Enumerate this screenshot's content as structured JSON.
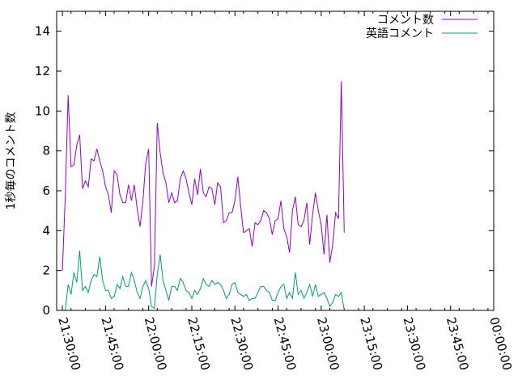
{
  "chart_data": {
    "type": "line",
    "title": "",
    "xlabel": "",
    "ylabel": "1秒毎のコメント数",
    "ylim": [
      0,
      15
    ],
    "yticks": [
      0,
      2,
      4,
      6,
      8,
      10,
      12,
      14
    ],
    "xlim": [
      "21:28:00",
      "00:00:00"
    ],
    "xticks": [
      "21:30:00",
      "21:45:00",
      "22:00:00",
      "22:15:00",
      "22:30:00",
      "22:45:00",
      "23:00:00",
      "23:15:00",
      "23:30:00",
      "23:45:00",
      "00:00:00"
    ],
    "grid": false,
    "legend_position": "top-right",
    "series": [
      {
        "name": "コメント数",
        "color": "#9400d3",
        "points": [
          [
            "21:30:00",
            2.0
          ],
          [
            "21:31:00",
            5.8
          ],
          [
            "21:32:00",
            10.8
          ],
          [
            "21:33:00",
            7.2
          ],
          [
            "21:34:00",
            7.3
          ],
          [
            "21:35:00",
            8.3
          ],
          [
            "21:36:00",
            8.8
          ],
          [
            "21:37:00",
            6.1
          ],
          [
            "21:38:00",
            6.5
          ],
          [
            "21:39:00",
            6.2
          ],
          [
            "21:40:00",
            7.6
          ],
          [
            "21:41:00",
            7.5
          ],
          [
            "21:42:00",
            8.1
          ],
          [
            "21:43:00",
            7.5
          ],
          [
            "21:44:00",
            7.0
          ],
          [
            "21:45:00",
            6.2
          ],
          [
            "21:46:00",
            5.8
          ],
          [
            "21:47:00",
            4.9
          ],
          [
            "21:48:00",
            7.0
          ],
          [
            "21:49:00",
            6.8
          ],
          [
            "21:50:00",
            5.8
          ],
          [
            "21:51:00",
            5.4
          ],
          [
            "21:52:00",
            5.4
          ],
          [
            "21:53:00",
            6.3
          ],
          [
            "21:54:00",
            5.5
          ],
          [
            "21:55:00",
            6.3
          ],
          [
            "21:56:00",
            5.1
          ],
          [
            "21:57:00",
            4.2
          ],
          [
            "21:58:00",
            5.5
          ],
          [
            "21:59:00",
            7.4
          ],
          [
            "22:00:00",
            8.1
          ],
          [
            "22:01:00",
            1.2
          ],
          [
            "22:02:00",
            2.2
          ],
          [
            "22:03:00",
            9.4
          ],
          [
            "22:04:00",
            7.9
          ],
          [
            "22:05:00",
            6.9
          ],
          [
            "22:06:00",
            6.4
          ],
          [
            "22:07:00",
            5.4
          ],
          [
            "22:08:00",
            5.9
          ],
          [
            "22:09:00",
            5.4
          ],
          [
            "22:10:00",
            5.5
          ],
          [
            "22:11:00",
            6.6
          ],
          [
            "22:12:00",
            7.0
          ],
          [
            "22:13:00",
            6.6
          ],
          [
            "22:14:00",
            5.9
          ],
          [
            "22:15:00",
            5.3
          ],
          [
            "22:16:00",
            6.6
          ],
          [
            "22:17:00",
            5.8
          ],
          [
            "22:18:00",
            7.1
          ],
          [
            "22:19:00",
            5.9
          ],
          [
            "22:20:00",
            5.7
          ],
          [
            "22:21:00",
            6.2
          ],
          [
            "22:22:00",
            6.1
          ],
          [
            "22:23:00",
            5.3
          ],
          [
            "22:24:00",
            6.4
          ],
          [
            "22:25:00",
            6.2
          ],
          [
            "22:26:00",
            4.4
          ],
          [
            "22:27:00",
            4.5
          ],
          [
            "22:28:00",
            4.9
          ],
          [
            "22:29:00",
            4.9
          ],
          [
            "22:30:00",
            5.5
          ],
          [
            "22:31:00",
            6.7
          ],
          [
            "22:32:00",
            5.2
          ],
          [
            "22:33:00",
            3.9
          ],
          [
            "22:34:00",
            4.0
          ],
          [
            "22:35:00",
            4.1
          ],
          [
            "22:36:00",
            3.2
          ],
          [
            "22:37:00",
            4.4
          ],
          [
            "22:38:00",
            4.3
          ],
          [
            "22:39:00",
            4.5
          ],
          [
            "22:40:00",
            5.0
          ],
          [
            "22:41:00",
            4.9
          ],
          [
            "22:42:00",
            4.6
          ],
          [
            "22:43:00",
            3.8
          ],
          [
            "22:44:00",
            4.5
          ],
          [
            "22:45:00",
            4.6
          ],
          [
            "22:46:00",
            5.5
          ],
          [
            "22:47:00",
            4.1
          ],
          [
            "22:48:00",
            3.7
          ],
          [
            "22:49:00",
            2.9
          ],
          [
            "22:50:00",
            5.0
          ],
          [
            "22:51:00",
            5.7
          ],
          [
            "22:52:00",
            4.3
          ],
          [
            "22:53:00",
            4.2
          ],
          [
            "22:54:00",
            4.5
          ],
          [
            "22:55:00",
            5.4
          ],
          [
            "22:56:00",
            3.3
          ],
          [
            "22:57:00",
            4.8
          ],
          [
            "22:58:00",
            5.9
          ],
          [
            "22:59:00",
            5.0
          ],
          [
            "23:00:00",
            4.3
          ],
          [
            "23:01:00",
            2.8
          ],
          [
            "23:02:00",
            4.8
          ],
          [
            "23:03:00",
            2.4
          ],
          [
            "23:04:00",
            3.3
          ],
          [
            "23:05:00",
            4.9
          ],
          [
            "23:06:00",
            4.6
          ],
          [
            "23:07:00",
            11.5
          ],
          [
            "23:08:00",
            3.9
          ]
        ]
      },
      {
        "name": "英語コメント",
        "color": "#009e73",
        "points": [
          [
            "21:30:00",
            0.0
          ],
          [
            "21:31:00",
            0.0
          ],
          [
            "21:32:00",
            1.3
          ],
          [
            "21:33:00",
            0.8
          ],
          [
            "21:34:00",
            1.9
          ],
          [
            "21:35:00",
            1.4
          ],
          [
            "21:36:00",
            3.0
          ],
          [
            "21:37:00",
            1.0
          ],
          [
            "21:38:00",
            1.2
          ],
          [
            "21:39:00",
            0.9
          ],
          [
            "21:40:00",
            1.5
          ],
          [
            "21:41:00",
            1.8
          ],
          [
            "21:42:00",
            1.7
          ],
          [
            "21:43:00",
            2.7
          ],
          [
            "21:44:00",
            1.5
          ],
          [
            "21:45:00",
            1.0
          ],
          [
            "21:46:00",
            1.0
          ],
          [
            "21:47:00",
            0.6
          ],
          [
            "21:48:00",
            0.7
          ],
          [
            "21:49:00",
            1.3
          ],
          [
            "21:50:00",
            1.1
          ],
          [
            "21:51:00",
            1.7
          ],
          [
            "21:52:00",
            1.2
          ],
          [
            "21:53:00",
            1.2
          ],
          [
            "21:54:00",
            1.9
          ],
          [
            "21:55:00",
            1.5
          ],
          [
            "21:56:00",
            0.9
          ],
          [
            "21:57:00",
            0.6
          ],
          [
            "21:58:00",
            1.2
          ],
          [
            "21:59:00",
            1.5
          ],
          [
            "22:00:00",
            1.1
          ],
          [
            "22:01:00",
            0.2
          ],
          [
            "22:02:00",
            0.1
          ],
          [
            "22:03:00",
            1.8
          ],
          [
            "22:04:00",
            2.8
          ],
          [
            "22:05:00",
            1.5
          ],
          [
            "22:06:00",
            1.0
          ],
          [
            "22:07:00",
            0.5
          ],
          [
            "22:08:00",
            1.2
          ],
          [
            "22:09:00",
            1.2
          ],
          [
            "22:10:00",
            1.0
          ],
          [
            "22:11:00",
            1.6
          ],
          [
            "22:12:00",
            1.4
          ],
          [
            "22:13:00",
            1.0
          ],
          [
            "22:14:00",
            0.9
          ],
          [
            "22:15:00",
            0.6
          ],
          [
            "22:16:00",
            1.0
          ],
          [
            "22:17:00",
            0.8
          ],
          [
            "22:18:00",
            1.1
          ],
          [
            "22:19:00",
            1.6
          ],
          [
            "22:20:00",
            1.3
          ],
          [
            "22:21:00",
            1.2
          ],
          [
            "22:22:00",
            1.5
          ],
          [
            "22:23:00",
            1.3
          ],
          [
            "22:24:00",
            1.4
          ],
          [
            "22:25:00",
            1.3
          ],
          [
            "22:26:00",
            1.0
          ],
          [
            "22:27:00",
            0.6
          ],
          [
            "22:28:00",
            0.8
          ],
          [
            "22:29:00",
            1.3
          ],
          [
            "22:30:00",
            1.4
          ],
          [
            "22:31:00",
            0.9
          ],
          [
            "22:32:00",
            0.8
          ],
          [
            "22:33:00",
            0.7
          ],
          [
            "22:34:00",
            0.8
          ],
          [
            "22:35:00",
            0.5
          ],
          [
            "22:36:00",
            0.6
          ],
          [
            "22:37:00",
            0.6
          ],
          [
            "22:38:00",
            0.9
          ],
          [
            "22:39:00",
            1.2
          ],
          [
            "22:40:00",
            1.2
          ],
          [
            "22:41:00",
            1.0
          ],
          [
            "22:42:00",
            0.9
          ],
          [
            "22:43:00",
            0.5
          ],
          [
            "22:44:00",
            0.5
          ],
          [
            "22:45:00",
            0.9
          ],
          [
            "22:46:00",
            1.2
          ],
          [
            "22:47:00",
            1.3
          ],
          [
            "22:48:00",
            0.6
          ],
          [
            "22:49:00",
            0.9
          ],
          [
            "22:50:00",
            0.6
          ],
          [
            "22:51:00",
            1.9
          ],
          [
            "22:52:00",
            0.8
          ],
          [
            "22:53:00",
            1.0
          ],
          [
            "22:54:00",
            0.6
          ],
          [
            "22:55:00",
            0.9
          ],
          [
            "22:56:00",
            1.3
          ],
          [
            "22:57:00",
            0.7
          ],
          [
            "22:58:00",
            1.3
          ],
          [
            "22:59:00",
            0.7
          ],
          [
            "23:00:00",
            0.8
          ],
          [
            "23:01:00",
            0.9
          ],
          [
            "23:02:00",
            0.6
          ],
          [
            "23:03:00",
            0.2
          ],
          [
            "23:04:00",
            0.4
          ],
          [
            "23:05:00",
            0.8
          ],
          [
            "23:06:00",
            0.7
          ],
          [
            "23:07:00",
            0.9
          ],
          [
            "23:08:00",
            0.0
          ]
        ]
      }
    ]
  }
}
